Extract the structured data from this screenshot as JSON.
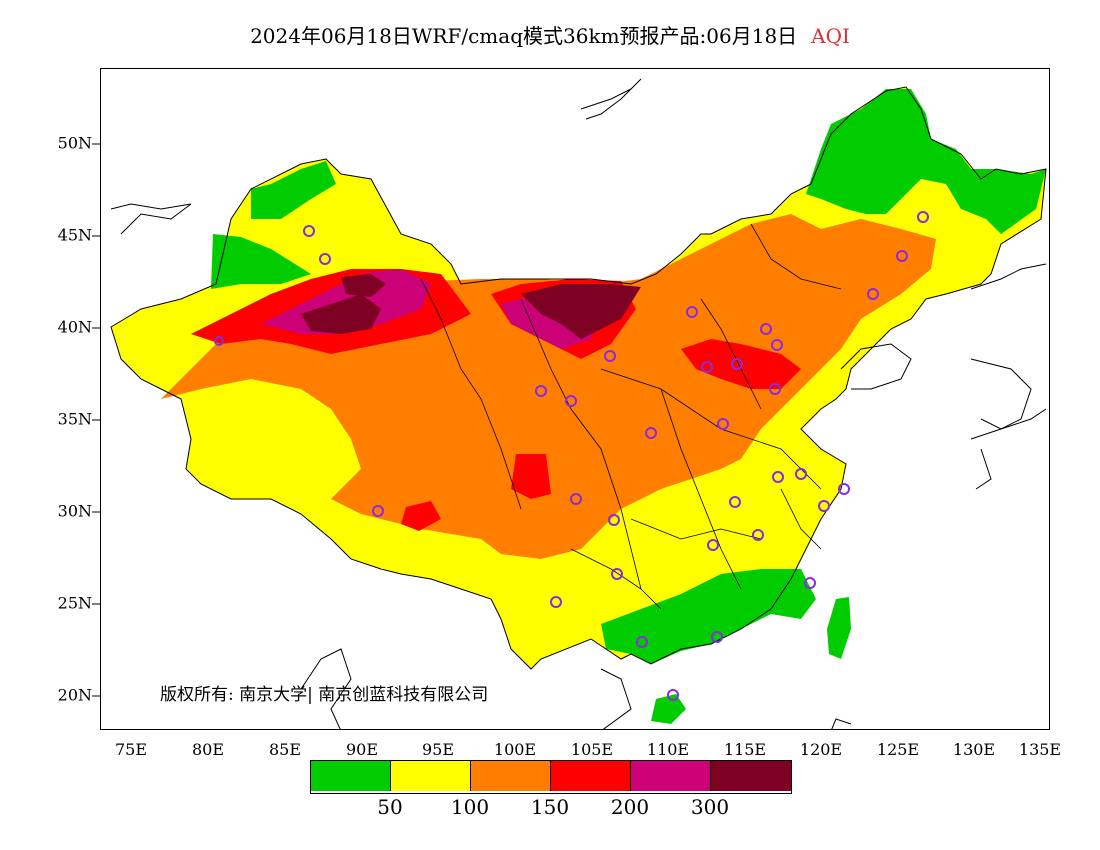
{
  "title": {
    "main": "2024年06月18日WRF/cmaq模式36km预报产品:06月18日",
    "variable": "AQI",
    "variable_color": "#e03030"
  },
  "axes": {
    "lat_labels": [
      "20N",
      "25N",
      "30N",
      "35N",
      "40N",
      "45N",
      "50N"
    ],
    "lon_labels": [
      "75E",
      "80E",
      "85E",
      "90E",
      "95E",
      "100E",
      "105E",
      "110E",
      "115E",
      "120E",
      "125E",
      "130E",
      "135E"
    ]
  },
  "copyright": "版权所有: 南京大学| 南京创蓝科技有限公司",
  "legend": {
    "colors": [
      "#00cc00",
      "#ffff00",
      "#ff7e00",
      "#ff0000",
      "#cc0077",
      "#7e0023"
    ],
    "labels": [
      "50",
      "100",
      "150",
      "200",
      "300"
    ]
  },
  "palette": {
    "good": "#00cc00",
    "moderate": "#ffff00",
    "usg": "#ff7e00",
    "unhealthy": "#ff0000",
    "very_unhealthy": "#cc0077",
    "hazardous": "#7e0023",
    "city_marker": "#8a2be2"
  }
}
